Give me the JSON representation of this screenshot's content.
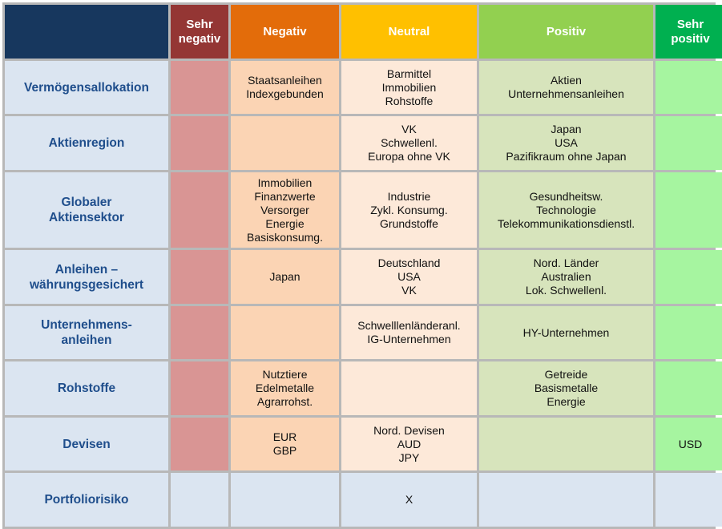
{
  "header": {
    "corner": "",
    "columns": [
      {
        "label": "Sehr\nnegativ",
        "color": "#943634"
      },
      {
        "label": "Negativ",
        "color": "#e36c0a"
      },
      {
        "label": "Neutral",
        "color": "#ffc000"
      },
      {
        "label": "Positiv",
        "color": "#92d050"
      },
      {
        "label": "Sehr\npositiv",
        "color": "#00b050"
      }
    ],
    "corner_color": "#17375e"
  },
  "rows": [
    {
      "label": "Vermögensallokation",
      "cells": [
        "",
        "Staatsanleihen\nIndexgebunden",
        "Barmittel\nImmobilien\nRohstoffe",
        "Aktien\nUnternehmensanleihen",
        ""
      ]
    },
    {
      "label": "Aktienregion",
      "cells": [
        "",
        "",
        "VK\nSchwellenl.\nEuropa ohne VK",
        "Japan\nUSA\nPazifikraum ohne Japan",
        ""
      ]
    },
    {
      "label": "Globaler\nAktiensektor",
      "cells": [
        "",
        "Immobilien\nFinanzwerte\nVersorger\nEnergie\nBasiskonsumg.",
        "Industrie\nZykl. Konsumg.\nGrundstoffe",
        "Gesundheitsw.\nTechnologie\nTelekommunikationsdienstl.",
        ""
      ]
    },
    {
      "label": "Anleihen –\nwährungsgesichert",
      "cells": [
        "",
        "Japan",
        "Deutschland\nUSA\nVK",
        "Nord. Länder\nAustralien\nLok. Schwellenl.",
        ""
      ]
    },
    {
      "label": "Unternehmens-\nanleihen",
      "cells": [
        "",
        "",
        "Schwelllenländeranl.\nIG-Unternehmen",
        "HY-Unternehmen",
        ""
      ]
    },
    {
      "label": "Rohstoffe",
      "cells": [
        "",
        "Nutztiere\nEdelmetalle\nAgrarrohst.",
        "",
        "Getreide\nBasismetalle\nEnergie",
        ""
      ]
    },
    {
      "label": "Devisen",
      "cells": [
        "",
        "EUR\nGBP",
        "Nord. Devisen\nAUD\nJPY",
        "",
        "USD"
      ]
    },
    {
      "label": "Portfoliorisiko",
      "cells": [
        "",
        "",
        "X",
        "",
        ""
      ]
    }
  ]
}
